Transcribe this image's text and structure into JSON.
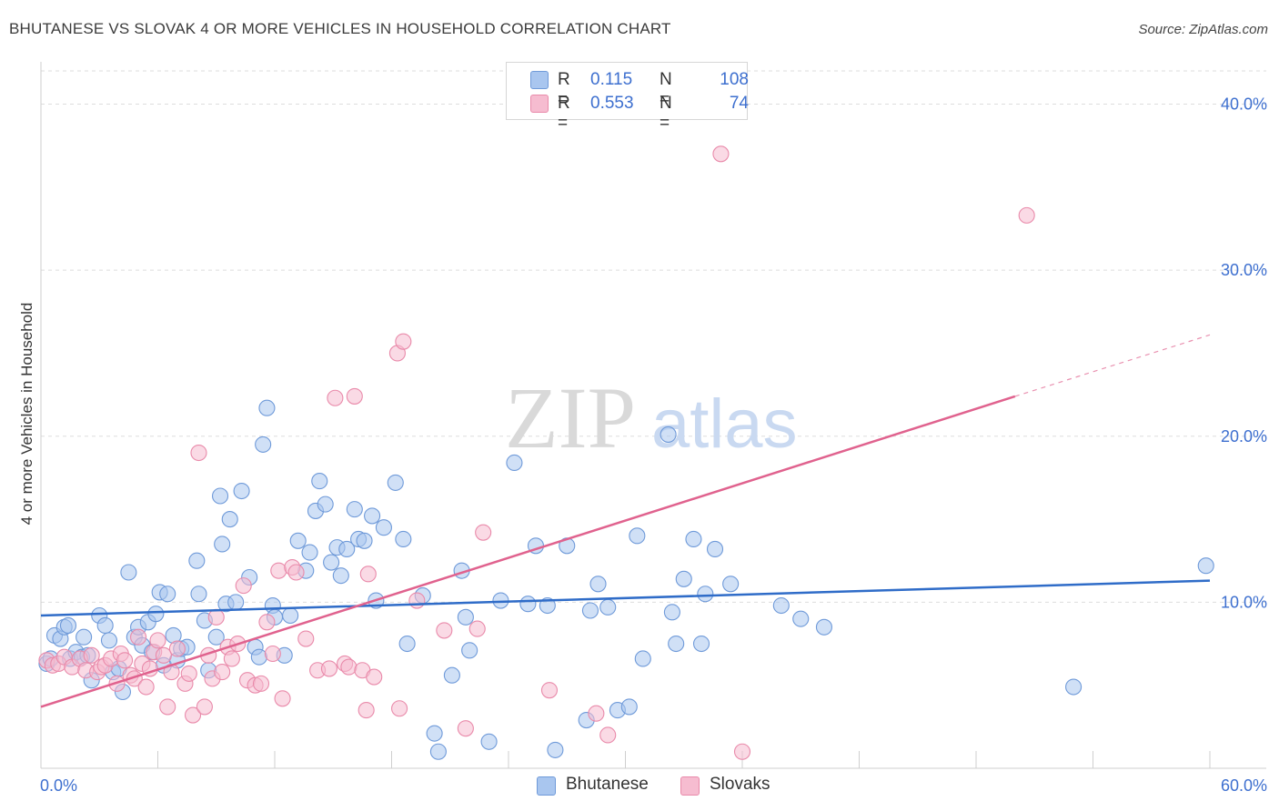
{
  "title": "BHUTANESE VS SLOVAK 4 OR MORE VEHICLES IN HOUSEHOLD CORRELATION CHART",
  "source": "Source: ZipAtlas.com",
  "watermark": {
    "zip": "ZIP",
    "atlas": "atlas"
  },
  "legend_top": {
    "rows": [
      {
        "r_label": "R =",
        "r_value": "0.115",
        "n_label": "N =",
        "n_value": "108"
      },
      {
        "r_label": "R =",
        "r_value": "0.553",
        "n_label": "N =",
        "n_value": "74"
      }
    ]
  },
  "legend_bottom": {
    "items": [
      "Bhutanese",
      "Slovaks"
    ]
  },
  "colors": {
    "bhutanese_fill": "#a9c6ef",
    "bhutanese_stroke": "#6f9ad9",
    "bhutanese_line": "#2f6cc8",
    "slovaks_fill": "#f6bcd0",
    "slovaks_stroke": "#e98aaa",
    "slovaks_line": "#e0628e",
    "axis_label": "#3d6fcf",
    "grid": "#dddddd"
  },
  "chart_data": {
    "type": "scatter",
    "title": "BHUTANESE VS SLOVAK 4 OR MORE VEHICLES IN HOUSEHOLD CORRELATION CHART",
    "xlabel": "",
    "ylabel": "4 or more Vehicles in Household",
    "xlim": [
      0,
      60
    ],
    "ylim": [
      0,
      42
    ],
    "x_tick_labels": [
      "0.0%",
      "60.0%"
    ],
    "y_ticks": [
      10,
      20,
      30,
      40
    ],
    "y_tick_labels": [
      "10.0%",
      "20.0%",
      "30.0%",
      "40.0%"
    ],
    "grid": true,
    "legend_position": "top-center",
    "series": [
      {
        "name": "Bhutanese",
        "R": 0.115,
        "N": 108,
        "trend": {
          "x": [
            0,
            60
          ],
          "y": [
            9.2,
            11.3
          ]
        },
        "points": [
          [
            0.3,
            6.3
          ],
          [
            0.5,
            6.6
          ],
          [
            0.7,
            8.0
          ],
          [
            1.0,
            7.8
          ],
          [
            1.2,
            8.5
          ],
          [
            1.4,
            8.6
          ],
          [
            1.5,
            6.6
          ],
          [
            1.8,
            7.0
          ],
          [
            2.1,
            6.7
          ],
          [
            2.2,
            7.9
          ],
          [
            2.4,
            6.8
          ],
          [
            2.6,
            5.3
          ],
          [
            3.0,
            9.2
          ],
          [
            3.3,
            8.6
          ],
          [
            3.5,
            7.7
          ],
          [
            3.7,
            5.8
          ],
          [
            4.0,
            6.0
          ],
          [
            4.2,
            4.6
          ],
          [
            4.5,
            11.8
          ],
          [
            4.8,
            7.9
          ],
          [
            5.0,
            8.5
          ],
          [
            5.2,
            7.4
          ],
          [
            5.5,
            8.8
          ],
          [
            5.7,
            7.0
          ],
          [
            5.9,
            9.3
          ],
          [
            6.1,
            10.6
          ],
          [
            6.3,
            6.2
          ],
          [
            6.5,
            10.5
          ],
          [
            6.8,
            8.0
          ],
          [
            7.0,
            6.5
          ],
          [
            7.2,
            7.2
          ],
          [
            7.5,
            7.3
          ],
          [
            8.0,
            12.5
          ],
          [
            8.1,
            10.5
          ],
          [
            8.4,
            8.9
          ],
          [
            8.6,
            5.9
          ],
          [
            9.0,
            7.9
          ],
          [
            9.2,
            16.4
          ],
          [
            9.3,
            13.5
          ],
          [
            9.5,
            9.9
          ],
          [
            9.7,
            15.0
          ],
          [
            10.0,
            10.0
          ],
          [
            10.3,
            16.7
          ],
          [
            10.7,
            11.5
          ],
          [
            11.0,
            7.3
          ],
          [
            11.2,
            6.7
          ],
          [
            11.4,
            19.5
          ],
          [
            11.6,
            21.7
          ],
          [
            11.9,
            9.8
          ],
          [
            12.0,
            9.1
          ],
          [
            12.5,
            6.8
          ],
          [
            12.8,
            9.2
          ],
          [
            13.2,
            13.7
          ],
          [
            13.6,
            11.9
          ],
          [
            13.8,
            13.0
          ],
          [
            14.1,
            15.5
          ],
          [
            14.3,
            17.3
          ],
          [
            14.6,
            15.9
          ],
          [
            14.9,
            12.4
          ],
          [
            15.2,
            13.3
          ],
          [
            15.4,
            11.6
          ],
          [
            15.7,
            13.2
          ],
          [
            16.1,
            15.6
          ],
          [
            16.3,
            13.8
          ],
          [
            16.6,
            13.7
          ],
          [
            17.0,
            15.2
          ],
          [
            17.2,
            10.1
          ],
          [
            17.6,
            14.5
          ],
          [
            18.2,
            17.2
          ],
          [
            18.6,
            13.8
          ],
          [
            18.8,
            7.5
          ],
          [
            19.6,
            10.4
          ],
          [
            20.2,
            2.1
          ],
          [
            20.4,
            1.0
          ],
          [
            21.1,
            5.6
          ],
          [
            21.6,
            11.9
          ],
          [
            21.8,
            9.1
          ],
          [
            22.0,
            7.1
          ],
          [
            23.0,
            1.6
          ],
          [
            23.6,
            10.1
          ],
          [
            24.3,
            18.4
          ],
          [
            25.0,
            9.9
          ],
          [
            25.4,
            13.4
          ],
          [
            26.0,
            9.8
          ],
          [
            26.4,
            1.1
          ],
          [
            27.0,
            13.4
          ],
          [
            28.0,
            2.9
          ],
          [
            28.2,
            9.5
          ],
          [
            28.6,
            11.1
          ],
          [
            29.1,
            9.7
          ],
          [
            29.6,
            3.5
          ],
          [
            30.2,
            3.7
          ],
          [
            30.6,
            14.0
          ],
          [
            30.9,
            6.6
          ],
          [
            32.2,
            20.1
          ],
          [
            32.4,
            9.4
          ],
          [
            32.6,
            7.5
          ],
          [
            33.0,
            11.4
          ],
          [
            33.5,
            13.8
          ],
          [
            33.9,
            7.5
          ],
          [
            34.1,
            10.5
          ],
          [
            34.6,
            13.2
          ],
          [
            35.4,
            11.1
          ],
          [
            38.0,
            9.8
          ],
          [
            39.0,
            9.0
          ],
          [
            40.2,
            8.5
          ],
          [
            53.0,
            4.9
          ],
          [
            59.8,
            12.2
          ]
        ]
      },
      {
        "name": "Slovaks",
        "R": 0.553,
        "N": 74,
        "trend": {
          "x": [
            0,
            50
          ],
          "y": [
            3.7,
            22.4
          ],
          "dashed_extension": {
            "x": [
              50,
              60
            ],
            "y": [
              22.4,
              26.1
            ]
          }
        },
        "points": [
          [
            0.3,
            6.5
          ],
          [
            0.6,
            6.2
          ],
          [
            0.9,
            6.3
          ],
          [
            1.2,
            6.7
          ],
          [
            1.6,
            6.1
          ],
          [
            2.0,
            6.6
          ],
          [
            2.3,
            5.9
          ],
          [
            2.6,
            6.8
          ],
          [
            2.9,
            5.8
          ],
          [
            3.1,
            6.1
          ],
          [
            3.3,
            6.2
          ],
          [
            3.6,
            6.6
          ],
          [
            3.9,
            5.1
          ],
          [
            4.1,
            6.9
          ],
          [
            4.3,
            6.5
          ],
          [
            4.6,
            5.6
          ],
          [
            4.8,
            5.4
          ],
          [
            5.0,
            7.9
          ],
          [
            5.2,
            6.3
          ],
          [
            5.4,
            4.9
          ],
          [
            5.6,
            6.0
          ],
          [
            5.8,
            7.0
          ],
          [
            6.0,
            7.7
          ],
          [
            6.3,
            6.8
          ],
          [
            6.5,
            3.7
          ],
          [
            6.7,
            5.8
          ],
          [
            7.0,
            7.2
          ],
          [
            7.4,
            5.1
          ],
          [
            7.6,
            5.7
          ],
          [
            7.8,
            3.2
          ],
          [
            8.1,
            19.0
          ],
          [
            8.4,
            3.7
          ],
          [
            8.6,
            6.8
          ],
          [
            8.8,
            5.4
          ],
          [
            9.0,
            9.1
          ],
          [
            9.3,
            5.8
          ],
          [
            9.6,
            7.3
          ],
          [
            9.8,
            6.6
          ],
          [
            10.4,
            11.0
          ],
          [
            10.6,
            5.3
          ],
          [
            11.0,
            5.0
          ],
          [
            11.3,
            5.1
          ],
          [
            11.6,
            8.8
          ],
          [
            11.9,
            6.9
          ],
          [
            12.2,
            11.9
          ],
          [
            12.4,
            4.2
          ],
          [
            12.9,
            12.1
          ],
          [
            13.1,
            11.8
          ],
          [
            13.6,
            7.8
          ],
          [
            14.2,
            5.9
          ],
          [
            14.8,
            6.0
          ],
          [
            15.1,
            22.3
          ],
          [
            15.6,
            6.3
          ],
          [
            15.8,
            6.1
          ],
          [
            16.1,
            22.4
          ],
          [
            16.7,
            3.5
          ],
          [
            16.8,
            11.7
          ],
          [
            18.3,
            25.0
          ],
          [
            18.6,
            25.7
          ],
          [
            18.4,
            3.6
          ],
          [
            19.3,
            10.1
          ],
          [
            20.7,
            8.3
          ],
          [
            21.8,
            2.4
          ],
          [
            22.7,
            14.2
          ],
          [
            22.4,
            8.4
          ],
          [
            28.5,
            3.3
          ],
          [
            29.1,
            2.0
          ],
          [
            34.9,
            37.0
          ],
          [
            50.6,
            33.3
          ],
          [
            36.0,
            1.0
          ],
          [
            16.5,
            5.9
          ],
          [
            17.1,
            5.5
          ],
          [
            26.1,
            4.7
          ],
          [
            10.1,
            7.5
          ]
        ]
      }
    ]
  }
}
